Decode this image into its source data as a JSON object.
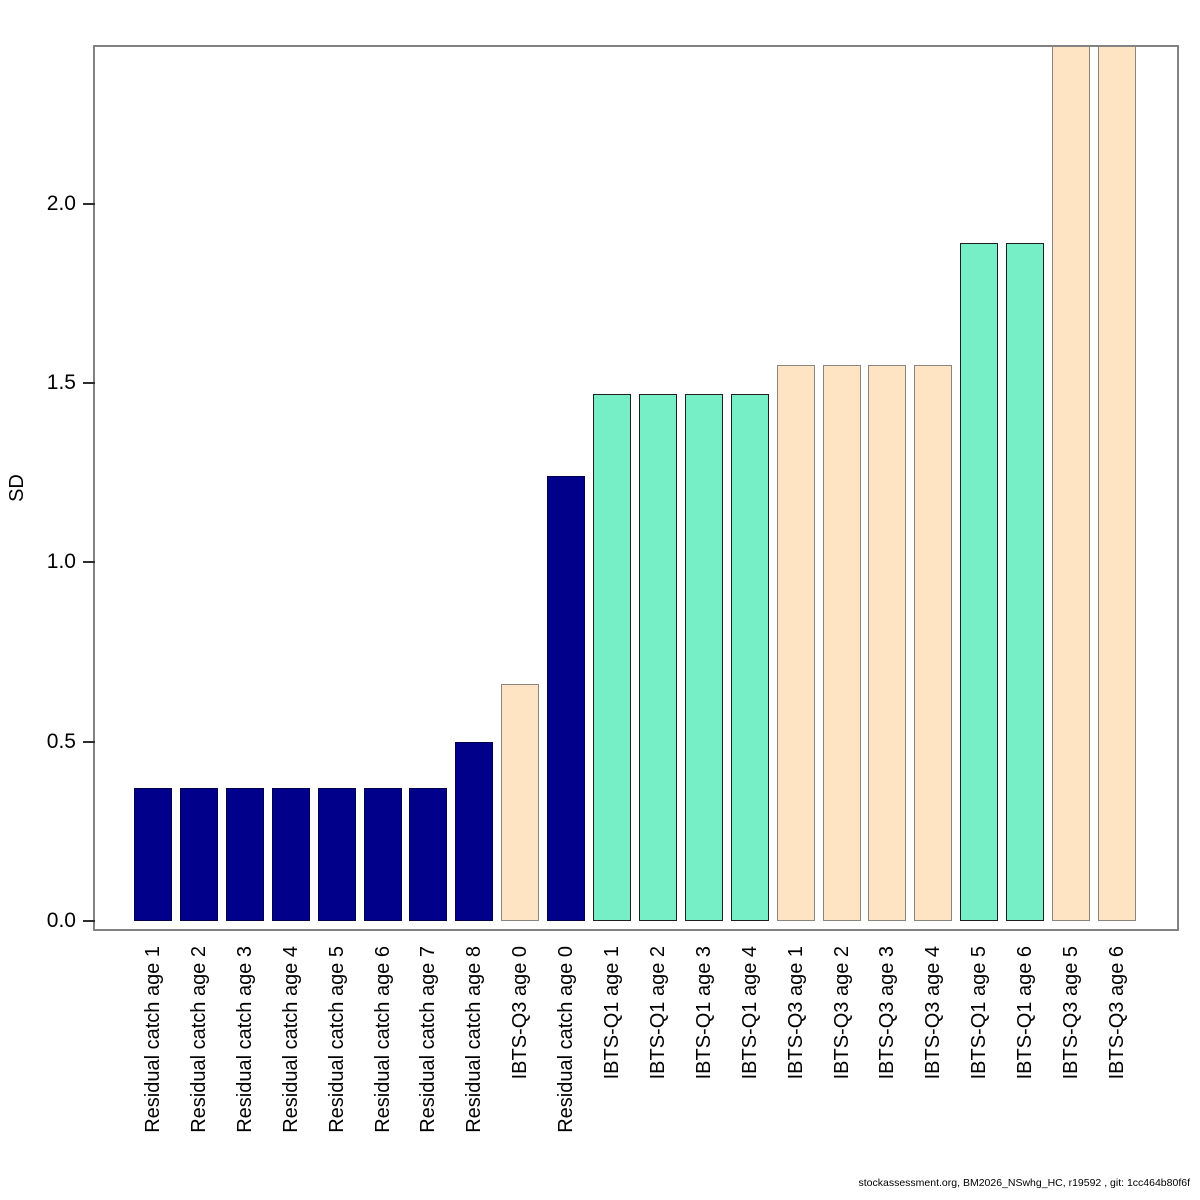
{
  "figure": {
    "background": "#ffffff",
    "frame_color": "#828282"
  },
  "footer": {
    "text": "stockassessment.org, BM2026_NSwhg_HC, r19592 , git: 1cc464b80f6f"
  },
  "chart_data": {
    "type": "bar",
    "title": "",
    "xlabel": "",
    "ylabel": "SD",
    "ylim": [
      0,
      2.44
    ],
    "yticks": [
      "0.0",
      "0.5",
      "1.0",
      "1.5",
      "2.0"
    ],
    "grid": false,
    "legend": "none",
    "clipped_note": "IBTS-Q3 age 5 and IBTS-Q3 age 6 bars exceed the visible y-axis range and are clipped at the top of the plot frame",
    "color_groups": {
      "catch": {
        "fill": "#00008B",
        "border": "#00004d"
      },
      "ibts_q1": {
        "fill": "#76EEC6",
        "border": "#1f1f1f"
      },
      "ibts_q3": {
        "fill": "#FFE4C4",
        "border": "#8a857d"
      }
    },
    "bars": [
      {
        "label": "Residual catch age 1",
        "value": 0.37,
        "group": "catch"
      },
      {
        "label": "Residual catch age 2",
        "value": 0.37,
        "group": "catch"
      },
      {
        "label": "Residual catch age 3",
        "value": 0.37,
        "group": "catch"
      },
      {
        "label": "Residual catch age 4",
        "value": 0.37,
        "group": "catch"
      },
      {
        "label": "Residual catch age 5",
        "value": 0.37,
        "group": "catch"
      },
      {
        "label": "Residual catch age 6",
        "value": 0.37,
        "group": "catch"
      },
      {
        "label": "Residual catch age 7",
        "value": 0.37,
        "group": "catch"
      },
      {
        "label": "Residual catch age 8",
        "value": 0.5,
        "group": "catch"
      },
      {
        "label": "IBTS-Q3 age 0",
        "value": 0.66,
        "group": "ibts_q3"
      },
      {
        "label": "Residual catch age 0",
        "value": 1.24,
        "group": "catch"
      },
      {
        "label": "IBTS-Q1 age 1",
        "value": 1.47,
        "group": "ibts_q1"
      },
      {
        "label": "IBTS-Q1 age 2",
        "value": 1.47,
        "group": "ibts_q1"
      },
      {
        "label": "IBTS-Q1 age 3",
        "value": 1.47,
        "group": "ibts_q1"
      },
      {
        "label": "IBTS-Q1 age 4",
        "value": 1.47,
        "group": "ibts_q1"
      },
      {
        "label": "IBTS-Q3 age 1",
        "value": 1.55,
        "group": "ibts_q3"
      },
      {
        "label": "IBTS-Q3 age 2",
        "value": 1.55,
        "group": "ibts_q3"
      },
      {
        "label": "IBTS-Q3 age 3",
        "value": 1.55,
        "group": "ibts_q3"
      },
      {
        "label": "IBTS-Q3 age 4",
        "value": 1.55,
        "group": "ibts_q3"
      },
      {
        "label": "IBTS-Q1 age 5",
        "value": 1.89,
        "group": "ibts_q1"
      },
      {
        "label": "IBTS-Q1 age 6",
        "value": 1.89,
        "group": "ibts_q1"
      },
      {
        "label": "IBTS-Q3 age 5",
        "value": 2.44,
        "group": "ibts_q3",
        "clipped": true
      },
      {
        "label": "IBTS-Q3 age 6",
        "value": 2.44,
        "group": "ibts_q3",
        "clipped": true
      }
    ]
  }
}
